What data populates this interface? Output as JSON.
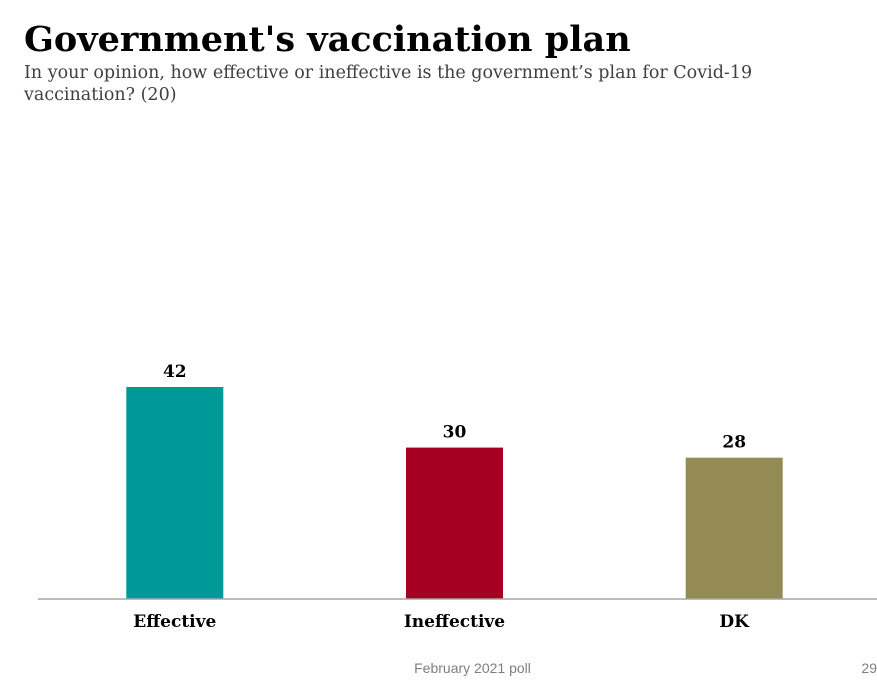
{
  "header": {
    "title": "Government's vaccination plan",
    "subtitle": "In your opinion, how effective or ineffective is the government’s plan for Covid-19 vaccination? (20)"
  },
  "footer": {
    "source": "February 2021 poll",
    "page_number": "29"
  },
  "chart_data": {
    "type": "bar",
    "title": "Government's vaccination plan",
    "categories": [
      "Effective",
      "Ineffective",
      "DK"
    ],
    "values": [
      42,
      30,
      28
    ],
    "labels": [
      "42",
      "30",
      "28"
    ],
    "colors": [
      "#009999",
      "#A50021",
      "#948A54"
    ],
    "xlabel": "",
    "ylabel": "",
    "ylim": [
      0,
      42
    ],
    "grid": false,
    "legend": "none"
  }
}
